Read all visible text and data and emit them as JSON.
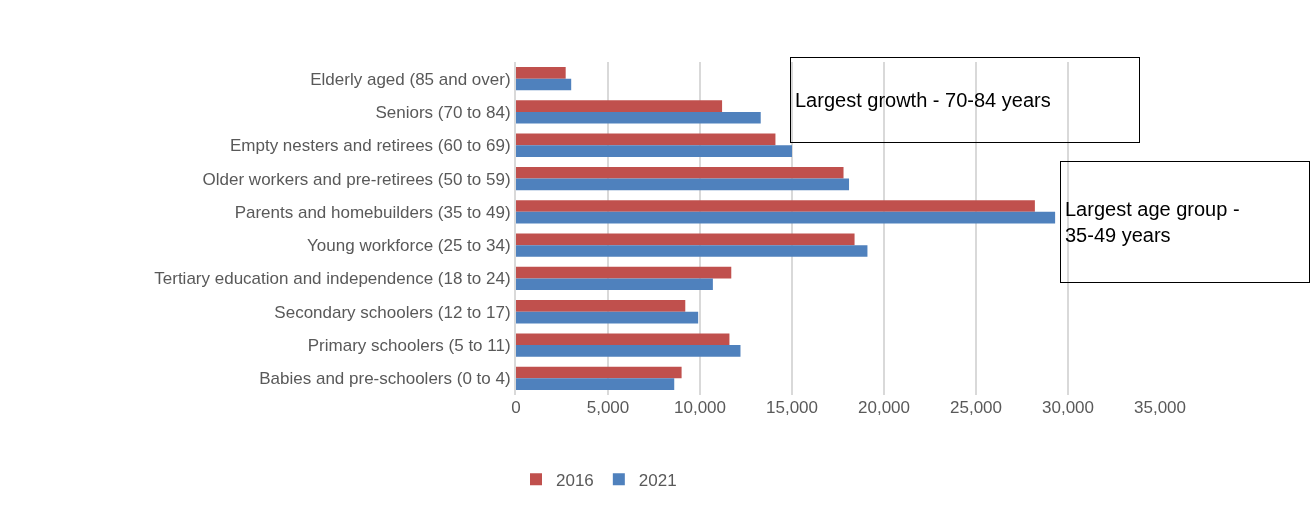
{
  "chart_data": {
    "type": "bar",
    "orientation": "horizontal",
    "categories": [
      "Elderly aged (85 and over)",
      "Seniors (70 to 84)",
      "Empty nesters and retirees (60 to 69)",
      "Older workers and pre-retirees (50 to 59)",
      "Parents and homebuilders (35 to 49)",
      "Young workforce (25 to 34)",
      "Tertiary education and independence (18 to 24)",
      "Secondary schoolers (12 to 17)",
      "Primary schoolers (5 to 11)",
      "Babies and pre-schoolers (0 to 4)"
    ],
    "series": [
      {
        "name": "2016",
        "color": "#c0504d",
        "values": [
          2700,
          11200,
          14100,
          17800,
          28200,
          18400,
          11700,
          9200,
          11600,
          9000
        ]
      },
      {
        "name": "2021",
        "color": "#4f81bd",
        "values": [
          3000,
          13300,
          15000,
          18100,
          29300,
          19100,
          10700,
          9900,
          12200,
          8600
        ]
      }
    ],
    "xlim": [
      0,
      35000
    ],
    "xticks": [
      0,
      {
        "value": 5000,
        "label": "5,000"
      },
      {
        "value": 10000,
        "label": "10,000"
      },
      {
        "value": 15000,
        "label": "15,000"
      },
      {
        "value": 20000,
        "label": "20,000"
      },
      {
        "value": 25000,
        "label": "25,000"
      },
      {
        "value": 30000,
        "label": "30,000"
      },
      {
        "value": 35000,
        "label": "35,000"
      }
    ],
    "grid": "x",
    "legend": "bottom",
    "annotations": [
      "Largest growth - 70-84 years",
      "Largest age group - \n35-49 years"
    ]
  }
}
